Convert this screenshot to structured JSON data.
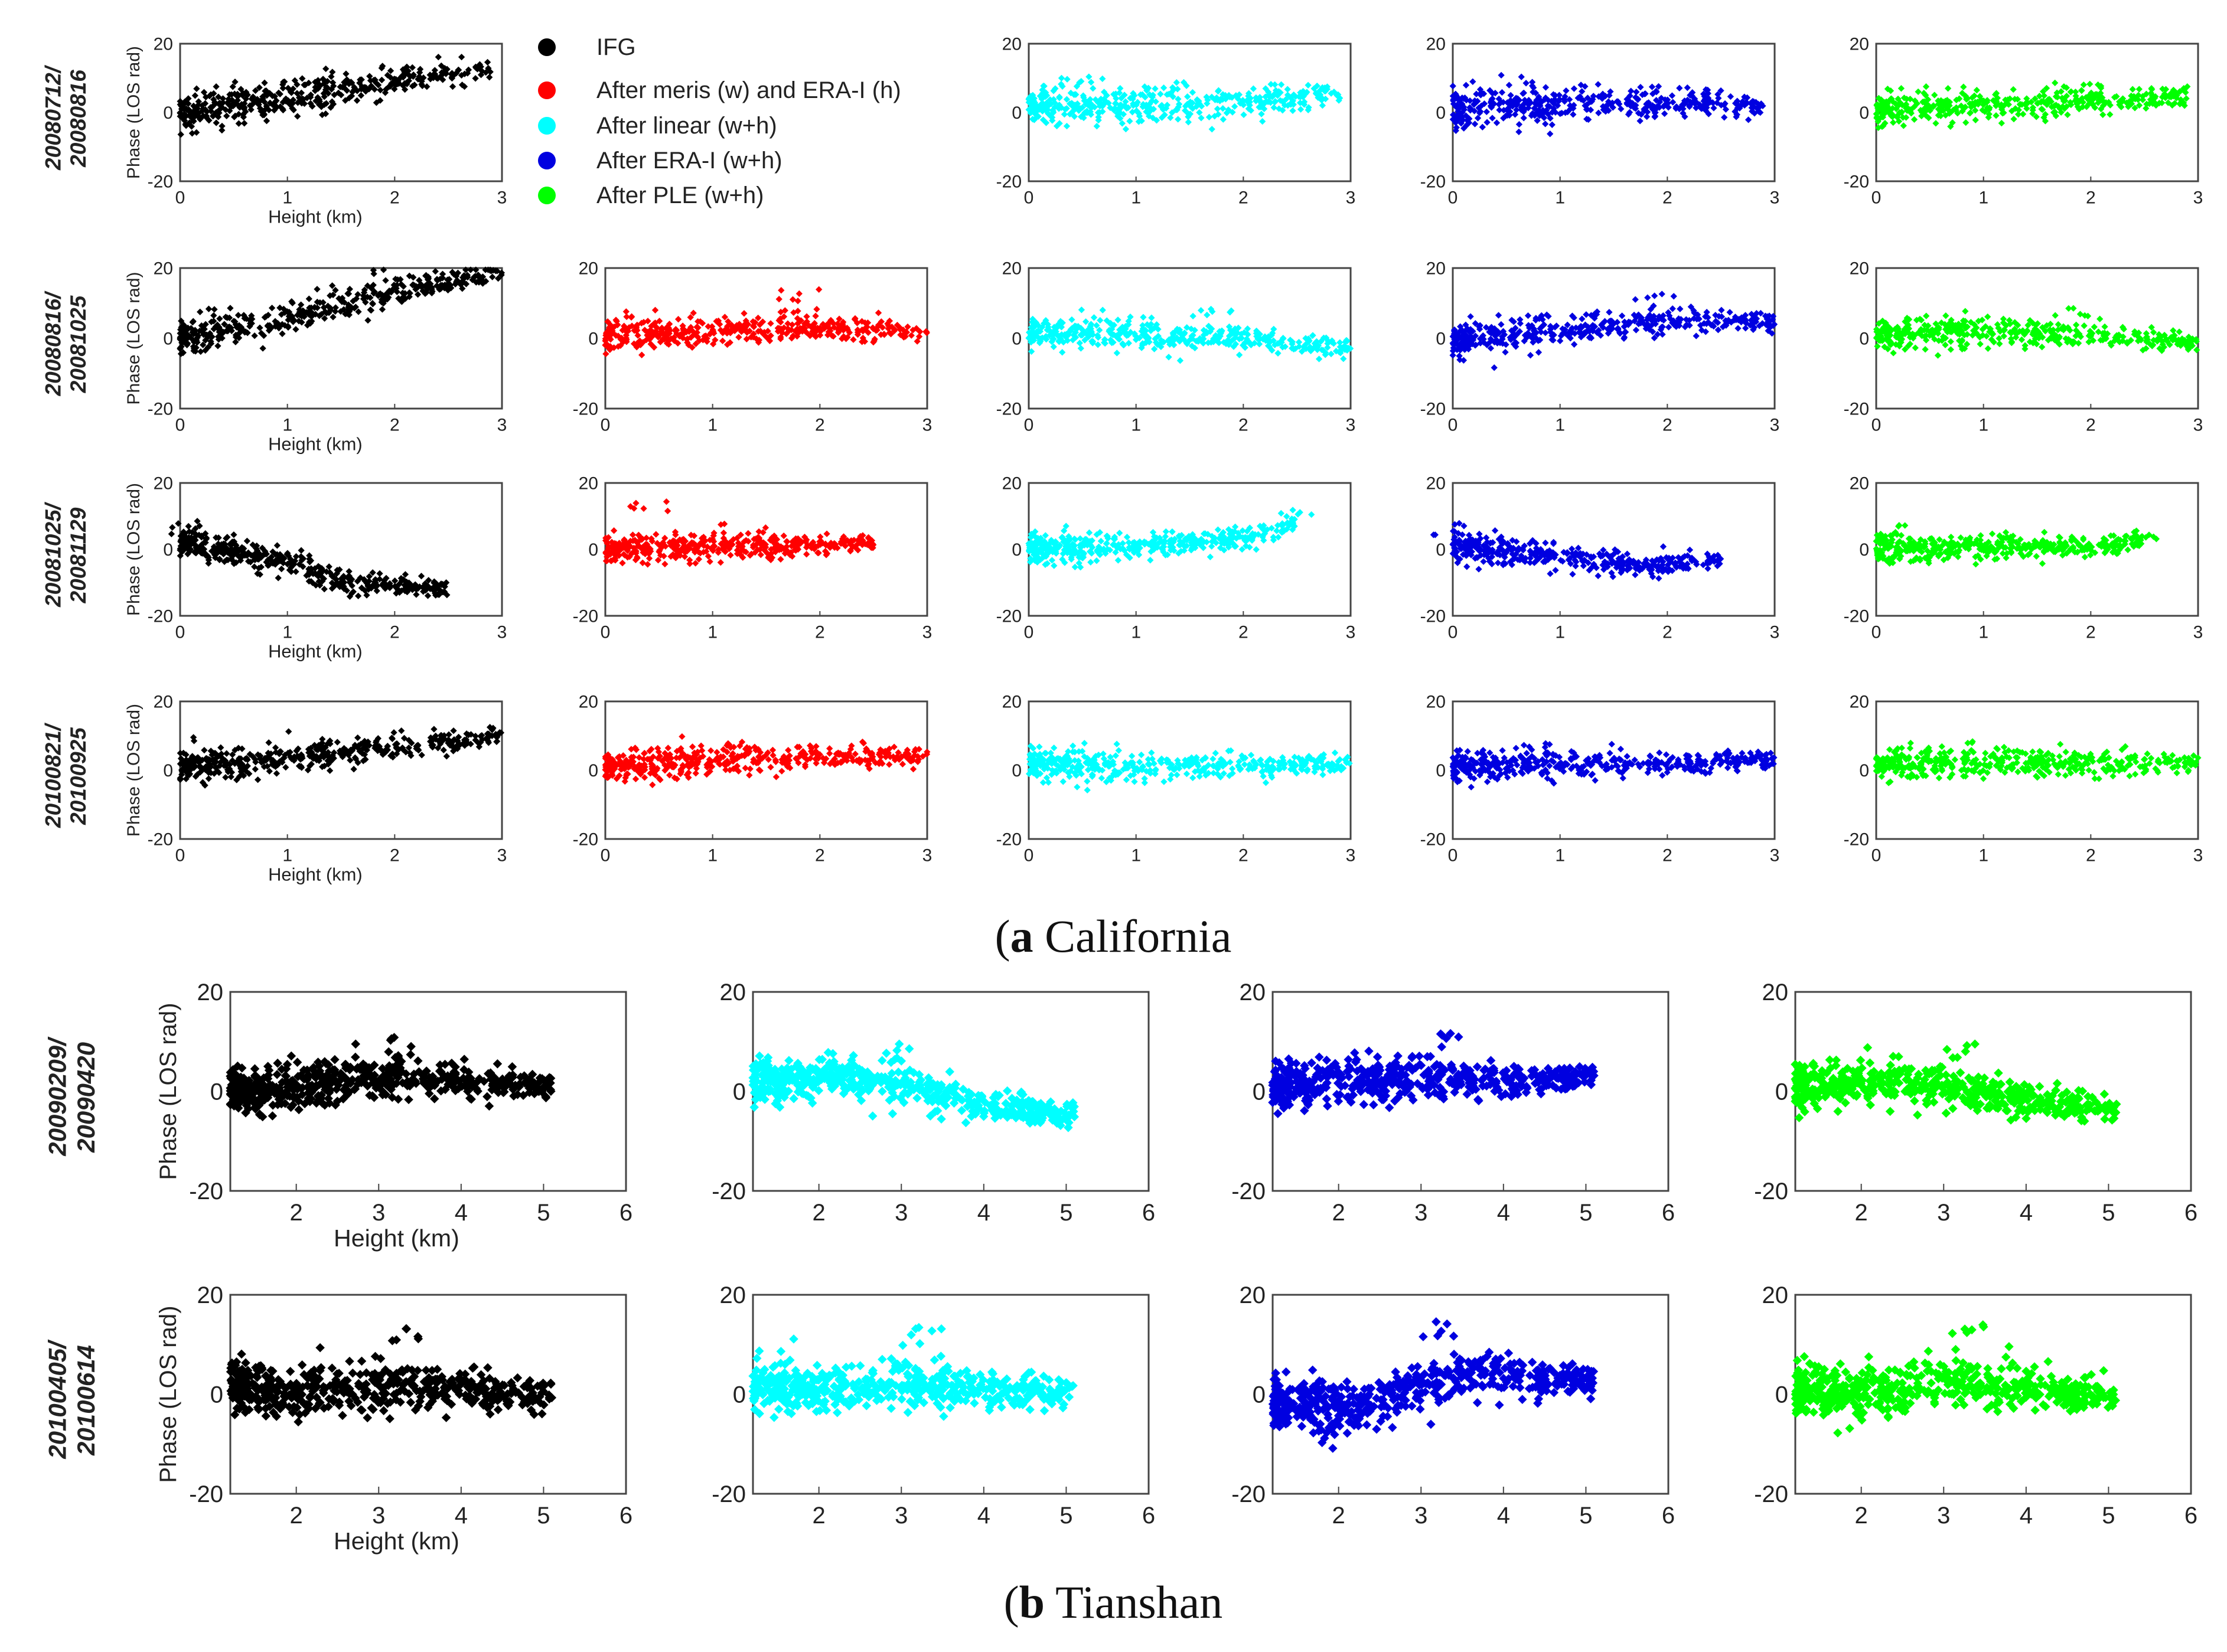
{
  "figure": {
    "legend": {
      "items": [
        {
          "label": "IFG",
          "color": "#000000"
        },
        {
          "label": "After meris (w) and ERA-I (h)",
          "color": "#ff0000"
        },
        {
          "label": "After linear (w+h)",
          "color": "#00ffff"
        },
        {
          "label": "After ERA-I (w+h)",
          "color": "#0000e0"
        },
        {
          "label": "After PLE (w+h)",
          "color": "#00ff00"
        }
      ]
    },
    "panel_a": {
      "caption_letter": "a",
      "caption_text": " California",
      "ylabel": "Phase (LOS rad)",
      "xlabel": "Height (km)",
      "yticks": [
        "20",
        "0",
        "-20"
      ],
      "xticks": [
        "0",
        "1",
        "2",
        "3"
      ]
    },
    "panel_b": {
      "caption_letter": "b",
      "caption_text": " Tianshan",
      "ylabel": "Phase (LOS rad)",
      "xlabel": "Height (km)",
      "yticks": [
        "20",
        "0",
        "-20"
      ],
      "xticks": [
        "2",
        "3",
        "4",
        "5",
        "6"
      ]
    }
  },
  "chart_data": [
    {
      "type": "scatter",
      "title": "(a) California",
      "xlabel": "Height (km)",
      "ylabel": "Phase (LOS rad)",
      "xlim": [
        0,
        3
      ],
      "ylim": [
        -20,
        20
      ],
      "rows": [
        {
          "pair": "20080712/ 20080816",
          "series": [
            {
              "name": "IFG",
              "color": "#000000",
              "trend": [
                [
                  0,
                  0
                ],
                [
                  1,
                  4
                ],
                [
                  2,
                  9
                ],
                [
                  2.9,
                  13
                ]
              ],
              "spread": 6,
              "xmax": 2.9,
              "peak": [
                2.0,
                14
              ]
            },
            null,
            {
              "name": "After linear (w+h)",
              "color": "#00ffff",
              "trend": [
                [
                  0,
                  2
                ],
                [
                  1,
                  2
                ],
                [
                  2,
                  3
                ],
                [
                  2.9,
                  6
                ]
              ],
              "spread": 6,
              "xmax": 2.9,
              "peak": [
                0.5,
                11
              ]
            },
            {
              "name": "After ERA-I (w+h)",
              "color": "#0000e0",
              "trend": [
                [
                  0,
                  1
                ],
                [
                  1,
                  2
                ],
                [
                  2,
                  3
                ],
                [
                  2.9,
                  2
                ]
              ],
              "spread": 6,
              "xmax": 2.9,
              "peak": [
                0.6,
                11
              ]
            },
            {
              "name": "After PLE (w+h)",
              "color": "#00ff00",
              "trend": [
                [
                  0,
                  1
                ],
                [
                  1,
                  2
                ],
                [
                  2,
                  3
                ],
                [
                  2.9,
                  5
                ]
              ],
              "spread": 5,
              "xmax": 2.9,
              "peak": [
                2.0,
                9
              ]
            }
          ]
        },
        {
          "pair": "20080816/ 20081025",
          "series": [
            {
              "name": "IFG",
              "color": "#000000",
              "trend": [
                [
                  0,
                  0
                ],
                [
                  1,
                  6
                ],
                [
                  2,
                  13
                ],
                [
                  3,
                  19
                ]
              ],
              "spread": 5,
              "xmax": 3.0,
              "peak": [
                2.0,
                20
              ]
            },
            {
              "name": "After meris (w) and ERA-I (h)",
              "color": "#ff0000",
              "trend": [
                [
                  0,
                  1
                ],
                [
                  1,
                  2
                ],
                [
                  2,
                  3
                ],
                [
                  3,
                  2
                ]
              ],
              "spread": 5,
              "xmax": 3.0,
              "peak": [
                1.8,
                14
              ]
            },
            {
              "name": "After linear (w+h)",
              "color": "#00ffff",
              "trend": [
                [
                  0,
                  2
                ],
                [
                  1,
                  1
                ],
                [
                  2,
                  0
                ],
                [
                  3,
                  -3
                ]
              ],
              "spread": 5,
              "xmax": 3.0,
              "peak": [
                1.7,
                10
              ]
            },
            {
              "name": "After ERA-I (w+h)",
              "color": "#0000e0",
              "trend": [
                [
                  0,
                  0
                ],
                [
                  1,
                  2
                ],
                [
                  2,
                  5
                ],
                [
                  3,
                  5
                ]
              ],
              "spread": 5,
              "xmax": 3.0,
              "peak": [
                1.9,
                13
              ]
            },
            {
              "name": "After PLE (w+h)",
              "color": "#00ff00",
              "trend": [
                [
                  0,
                  1
                ],
                [
                  1,
                  2
                ],
                [
                  2,
                  1
                ],
                [
                  3,
                  -1
                ]
              ],
              "spread": 5,
              "xmax": 3.0,
              "peak": [
                1.8,
                10
              ]
            }
          ]
        },
        {
          "pair": "20081025/ 20081129",
          "series": [
            {
              "name": "IFG",
              "color": "#000000",
              "trend": [
                [
                  0,
                  2
                ],
                [
                  1,
                  -4
                ],
                [
                  1.6,
                  -10
                ],
                [
                  2.5,
                  -12
                ]
              ],
              "spread": 5,
              "xmax": 2.5,
              "peak": [
                0.1,
                8
              ]
            },
            {
              "name": "After meris (w) and ERA-I (h)",
              "color": "#ff0000",
              "trend": [
                [
                  0,
                  0
                ],
                [
                  1,
                  1
                ],
                [
                  2,
                  1
                ],
                [
                  2.5,
                  2
                ]
              ],
              "spread": 5,
              "xmax": 2.5,
              "peak": [
                0.4,
                15
              ]
            },
            {
              "name": "After linear (w+h)",
              "color": "#00ffff",
              "trend": [
                [
                  0,
                  0
                ],
                [
                  1,
                  1
                ],
                [
                  2,
                  3
                ],
                [
                  2.5,
                  8
                ]
              ],
              "spread": 5,
              "xmax": 2.5,
              "peak": [
                2.5,
                12
              ]
            },
            {
              "name": "After ERA-I (w+h)",
              "color": "#0000e0",
              "trend": [
                [
                  0,
                  1
                ],
                [
                  1,
                  -2
                ],
                [
                  1.8,
                  -5
                ],
                [
                  2.5,
                  -3
                ]
              ],
              "spread": 5,
              "xmax": 2.5,
              "peak": [
                0,
                8
              ]
            },
            {
              "name": "After PLE (w+h)",
              "color": "#00ff00",
              "trend": [
                [
                  0,
                  0
                ],
                [
                  1,
                  1
                ],
                [
                  2,
                  1
                ],
                [
                  2.5,
                  3
                ]
              ],
              "spread": 5,
              "xmax": 2.5,
              "peak": [
                2.5,
                6
              ]
            }
          ]
        },
        {
          "pair": "20100821/ 20100925",
          "series": [
            {
              "name": "IFG",
              "color": "#000000",
              "trend": [
                [
                  0,
                  1
                ],
                [
                  1,
                  3
                ],
                [
                  2,
                  7
                ],
                [
                  3,
                  10
                ]
              ],
              "spread": 5,
              "xmax": 3.0,
              "peak": [
                2.5,
                12
              ]
            },
            {
              "name": "After meris (w) and ERA-I (h)",
              "color": "#ff0000",
              "trend": [
                [
                  0,
                  1
                ],
                [
                  1,
                  3
                ],
                [
                  2,
                  4
                ],
                [
                  3,
                  4
                ]
              ],
              "spread": 5,
              "xmax": 3.0,
              "peak": [
                1.2,
                9
              ]
            },
            {
              "name": "After linear (w+h)",
              "color": "#00ffff",
              "trend": [
                [
                  0,
                  2
                ],
                [
                  1,
                  1
                ],
                [
                  2,
                  1
                ],
                [
                  3,
                  2
                ]
              ],
              "spread": 5,
              "xmax": 3.0,
              "peak": [
                0.5,
                9
              ]
            },
            {
              "name": "After ERA-I (w+h)",
              "color": "#0000e0",
              "trend": [
                [
                  0,
                  1
                ],
                [
                  1,
                  2
                ],
                [
                  2,
                  2
                ],
                [
                  3,
                  3
                ]
              ],
              "spread": 5,
              "xmax": 3.0,
              "peak": [
                0.8,
                9
              ]
            },
            {
              "name": "After PLE (w+h)",
              "color": "#00ff00",
              "trend": [
                [
                  0,
                  1
                ],
                [
                  1,
                  2
                ],
                [
                  2,
                  2
                ],
                [
                  3,
                  2
                ]
              ],
              "spread": 5,
              "xmax": 3.0,
              "peak": [
                1.0,
                9
              ]
            }
          ]
        }
      ]
    },
    {
      "type": "scatter",
      "title": "(b) Tianshan",
      "xlabel": "Height (km)",
      "ylabel": "Phase (LOS rad)",
      "xlim": [
        1.2,
        6
      ],
      "ylim": [
        -20,
        20
      ],
      "rows": [
        {
          "pair": "20090209/ 20090420",
          "series": [
            {
              "name": "IFG",
              "color": "#000000",
              "trend": [
                [
                  1.2,
                  0
                ],
                [
                  2,
                  1
                ],
                [
                  3,
                  3
                ],
                [
                  4,
                  2
                ],
                [
                  5,
                  1
                ]
              ],
              "spread": 5,
              "xmax": 5.1,
              "peak": [
                3.3,
                11
              ]
            },
            {
              "name": "After linear (w+h)",
              "color": "#00ffff",
              "trend": [
                [
                  1.2,
                  2
                ],
                [
                  2,
                  3
                ],
                [
                  3,
                  1
                ],
                [
                  4,
                  -3
                ],
                [
                  5,
                  -5
                ]
              ],
              "spread": 5,
              "xmax": 5.1,
              "peak": [
                3.0,
                9
              ]
            },
            {
              "name": "After ERA-I (w+h)",
              "color": "#0000e0",
              "trend": [
                [
                  1.2,
                  1
                ],
                [
                  2,
                  2
                ],
                [
                  3,
                  3
                ],
                [
                  4,
                  2
                ],
                [
                  5,
                  3
                ]
              ],
              "spread": 5,
              "xmax": 5.1,
              "peak": [
                3.3,
                12
              ]
            },
            {
              "name": "After PLE (w+h)",
              "color": "#00ff00",
              "trend": [
                [
                  1.2,
                  1
                ],
                [
                  2,
                  2
                ],
                [
                  3,
                  1
                ],
                [
                  4,
                  -2
                ],
                [
                  5,
                  -4
                ]
              ],
              "spread": 5,
              "xmax": 5.1,
              "peak": [
                3.2,
                10
              ]
            }
          ]
        },
        {
          "pair": "20100405/ 20100614",
          "series": [
            {
              "name": "IFG",
              "color": "#000000",
              "trend": [
                [
                  1.2,
                  2
                ],
                [
                  2,
                  0
                ],
                [
                  3,
                  1
                ],
                [
                  4,
                  2
                ],
                [
                  4.5,
                  0
                ]
              ],
              "spread": 6,
              "xmax": 5.1,
              "peak": [
                3.3,
                14
              ]
            },
            {
              "name": "After linear (w+h)",
              "color": "#00ffff",
              "trend": [
                [
                  1.2,
                  2
                ],
                [
                  2,
                  1
                ],
                [
                  3,
                  2
                ],
                [
                  4,
                  1
                ],
                [
                  4.5,
                  0
                ]
              ],
              "spread": 6,
              "xmax": 5.1,
              "peak": [
                3.3,
                14
              ]
            },
            {
              "name": "After ERA-I (w+h)",
              "color": "#0000e0",
              "trend": [
                [
                  1.2,
                  -2
                ],
                [
                  2,
                  -3
                ],
                [
                  3,
                  2
                ],
                [
                  4,
                  5
                ],
                [
                  4.5,
                  3
                ]
              ],
              "spread": 6,
              "xmax": 5.1,
              "peak": [
                3.2,
                15
              ]
            },
            {
              "name": "After PLE (w+h)",
              "color": "#00ff00",
              "trend": [
                [
                  1.2,
                  1
                ],
                [
                  2,
                  0
                ],
                [
                  3,
                  2
                ],
                [
                  4,
                  2
                ],
                [
                  4.5,
                  0
                ]
              ],
              "spread": 6,
              "xmax": 5.1,
              "peak": [
                3.3,
                14
              ]
            }
          ]
        }
      ]
    }
  ]
}
